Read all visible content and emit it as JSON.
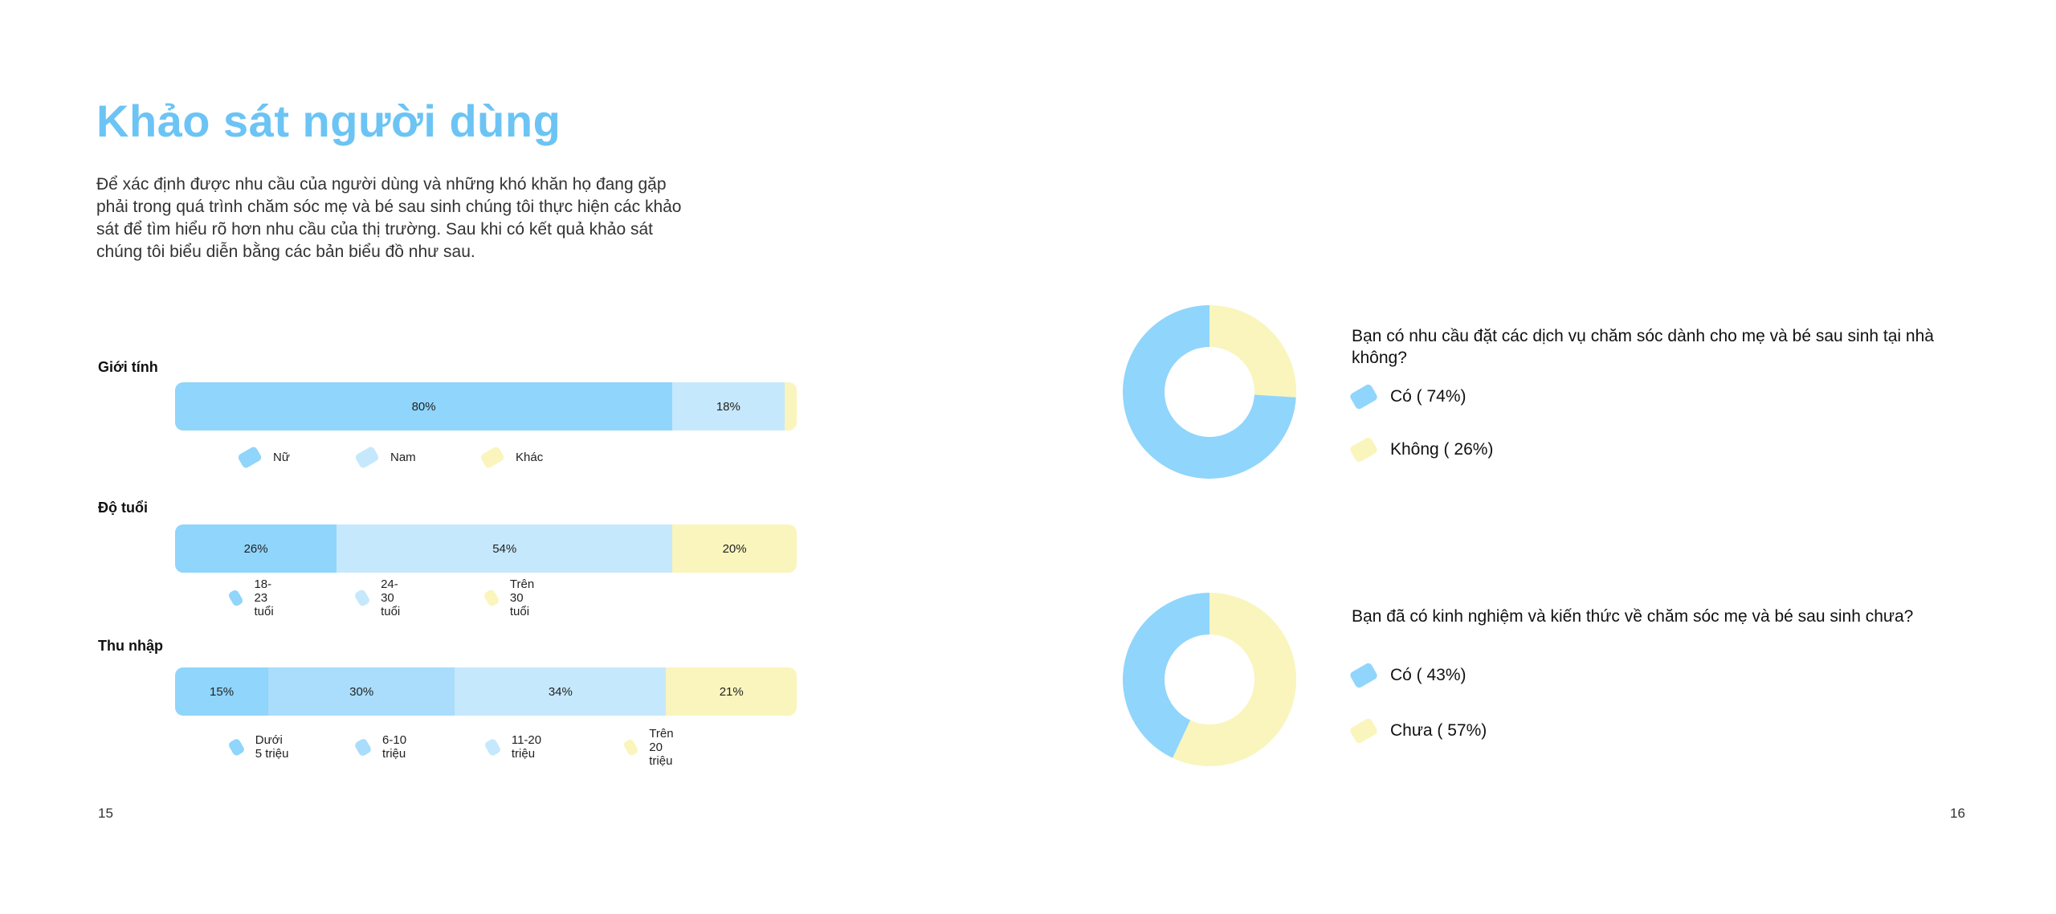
{
  "title": "Khảo sát người dùng",
  "intro": "Để xác định được nhu cầu của người dùng và những khó khăn họ đang gặp phải trong quá trình chăm sóc mẹ và bé sau sinh chúng tôi thực hiện các khảo sát để tìm hiểu rõ hơn nhu cầu của thị trường. Sau khi có kết quả khảo sát chúng tôi biểu diễn bằng các bản biểu đồ như sau.",
  "colors": {
    "title": "#6cc4f4",
    "blue_dark": "#90d5fb",
    "blue_mid": "#a9ddfb",
    "blue_light": "#c6e8fc",
    "yellow": "#f9f5bd"
  },
  "page_numbers": {
    "left": "15",
    "right": "16"
  },
  "chart_data": [
    {
      "type": "bar",
      "orientation": "horizontal-stacked",
      "title": "Giới tính",
      "unit": "%",
      "categories": [
        "Nữ",
        "Nam",
        "Khác"
      ],
      "values": [
        80,
        18,
        2
      ],
      "labels": [
        "80%",
        "18%",
        ""
      ],
      "colors": [
        "#90d5fb",
        "#c6e8fc",
        "#f9f5bd"
      ]
    },
    {
      "type": "bar",
      "orientation": "horizontal-stacked",
      "title": "Độ tuổi",
      "unit": "%",
      "categories": [
        "18- 23 tuổi",
        "24-30 tuổi",
        "Trên 30 tuổi"
      ],
      "values": [
        26,
        54,
        20
      ],
      "labels": [
        "26%",
        "54%",
        "20%"
      ],
      "colors": [
        "#90d5fb",
        "#c6e8fc",
        "#f9f5bd"
      ]
    },
    {
      "type": "bar",
      "orientation": "horizontal-stacked",
      "title": "Thu nhập",
      "unit": "%",
      "categories": [
        "Dưới 5 triệu",
        "6-10 triệu",
        "11-20 triệu",
        "Trên 20 triệu"
      ],
      "values": [
        15,
        30,
        34,
        21
      ],
      "labels": [
        "15%",
        "30%",
        "34%",
        "21%"
      ],
      "colors": [
        "#90d5fb",
        "#a9ddfb",
        "#c6e8fc",
        "#f9f5bd"
      ]
    },
    {
      "type": "pie",
      "style": "donut",
      "title": "Bạn có nhu cầu đặt các dịch vụ chăm sóc dành cho mẹ và bé sau sinh tại nhà không?",
      "slices": [
        {
          "label": "Có ( 74%)",
          "value": 74,
          "color": "#90d5fb"
        },
        {
          "label": "Không ( 26%)",
          "value": 26,
          "color": "#f9f5bd"
        }
      ]
    },
    {
      "type": "pie",
      "style": "donut",
      "title": "Bạn đã có kinh nghiệm và kiến thức về chăm sóc mẹ và bé sau sinh chưa?",
      "slices": [
        {
          "label": "Có ( 43%)",
          "value": 43,
          "color": "#90d5fb"
        },
        {
          "label": "Chưa ( 57%)",
          "value": 57,
          "color": "#f9f5bd"
        }
      ]
    }
  ]
}
